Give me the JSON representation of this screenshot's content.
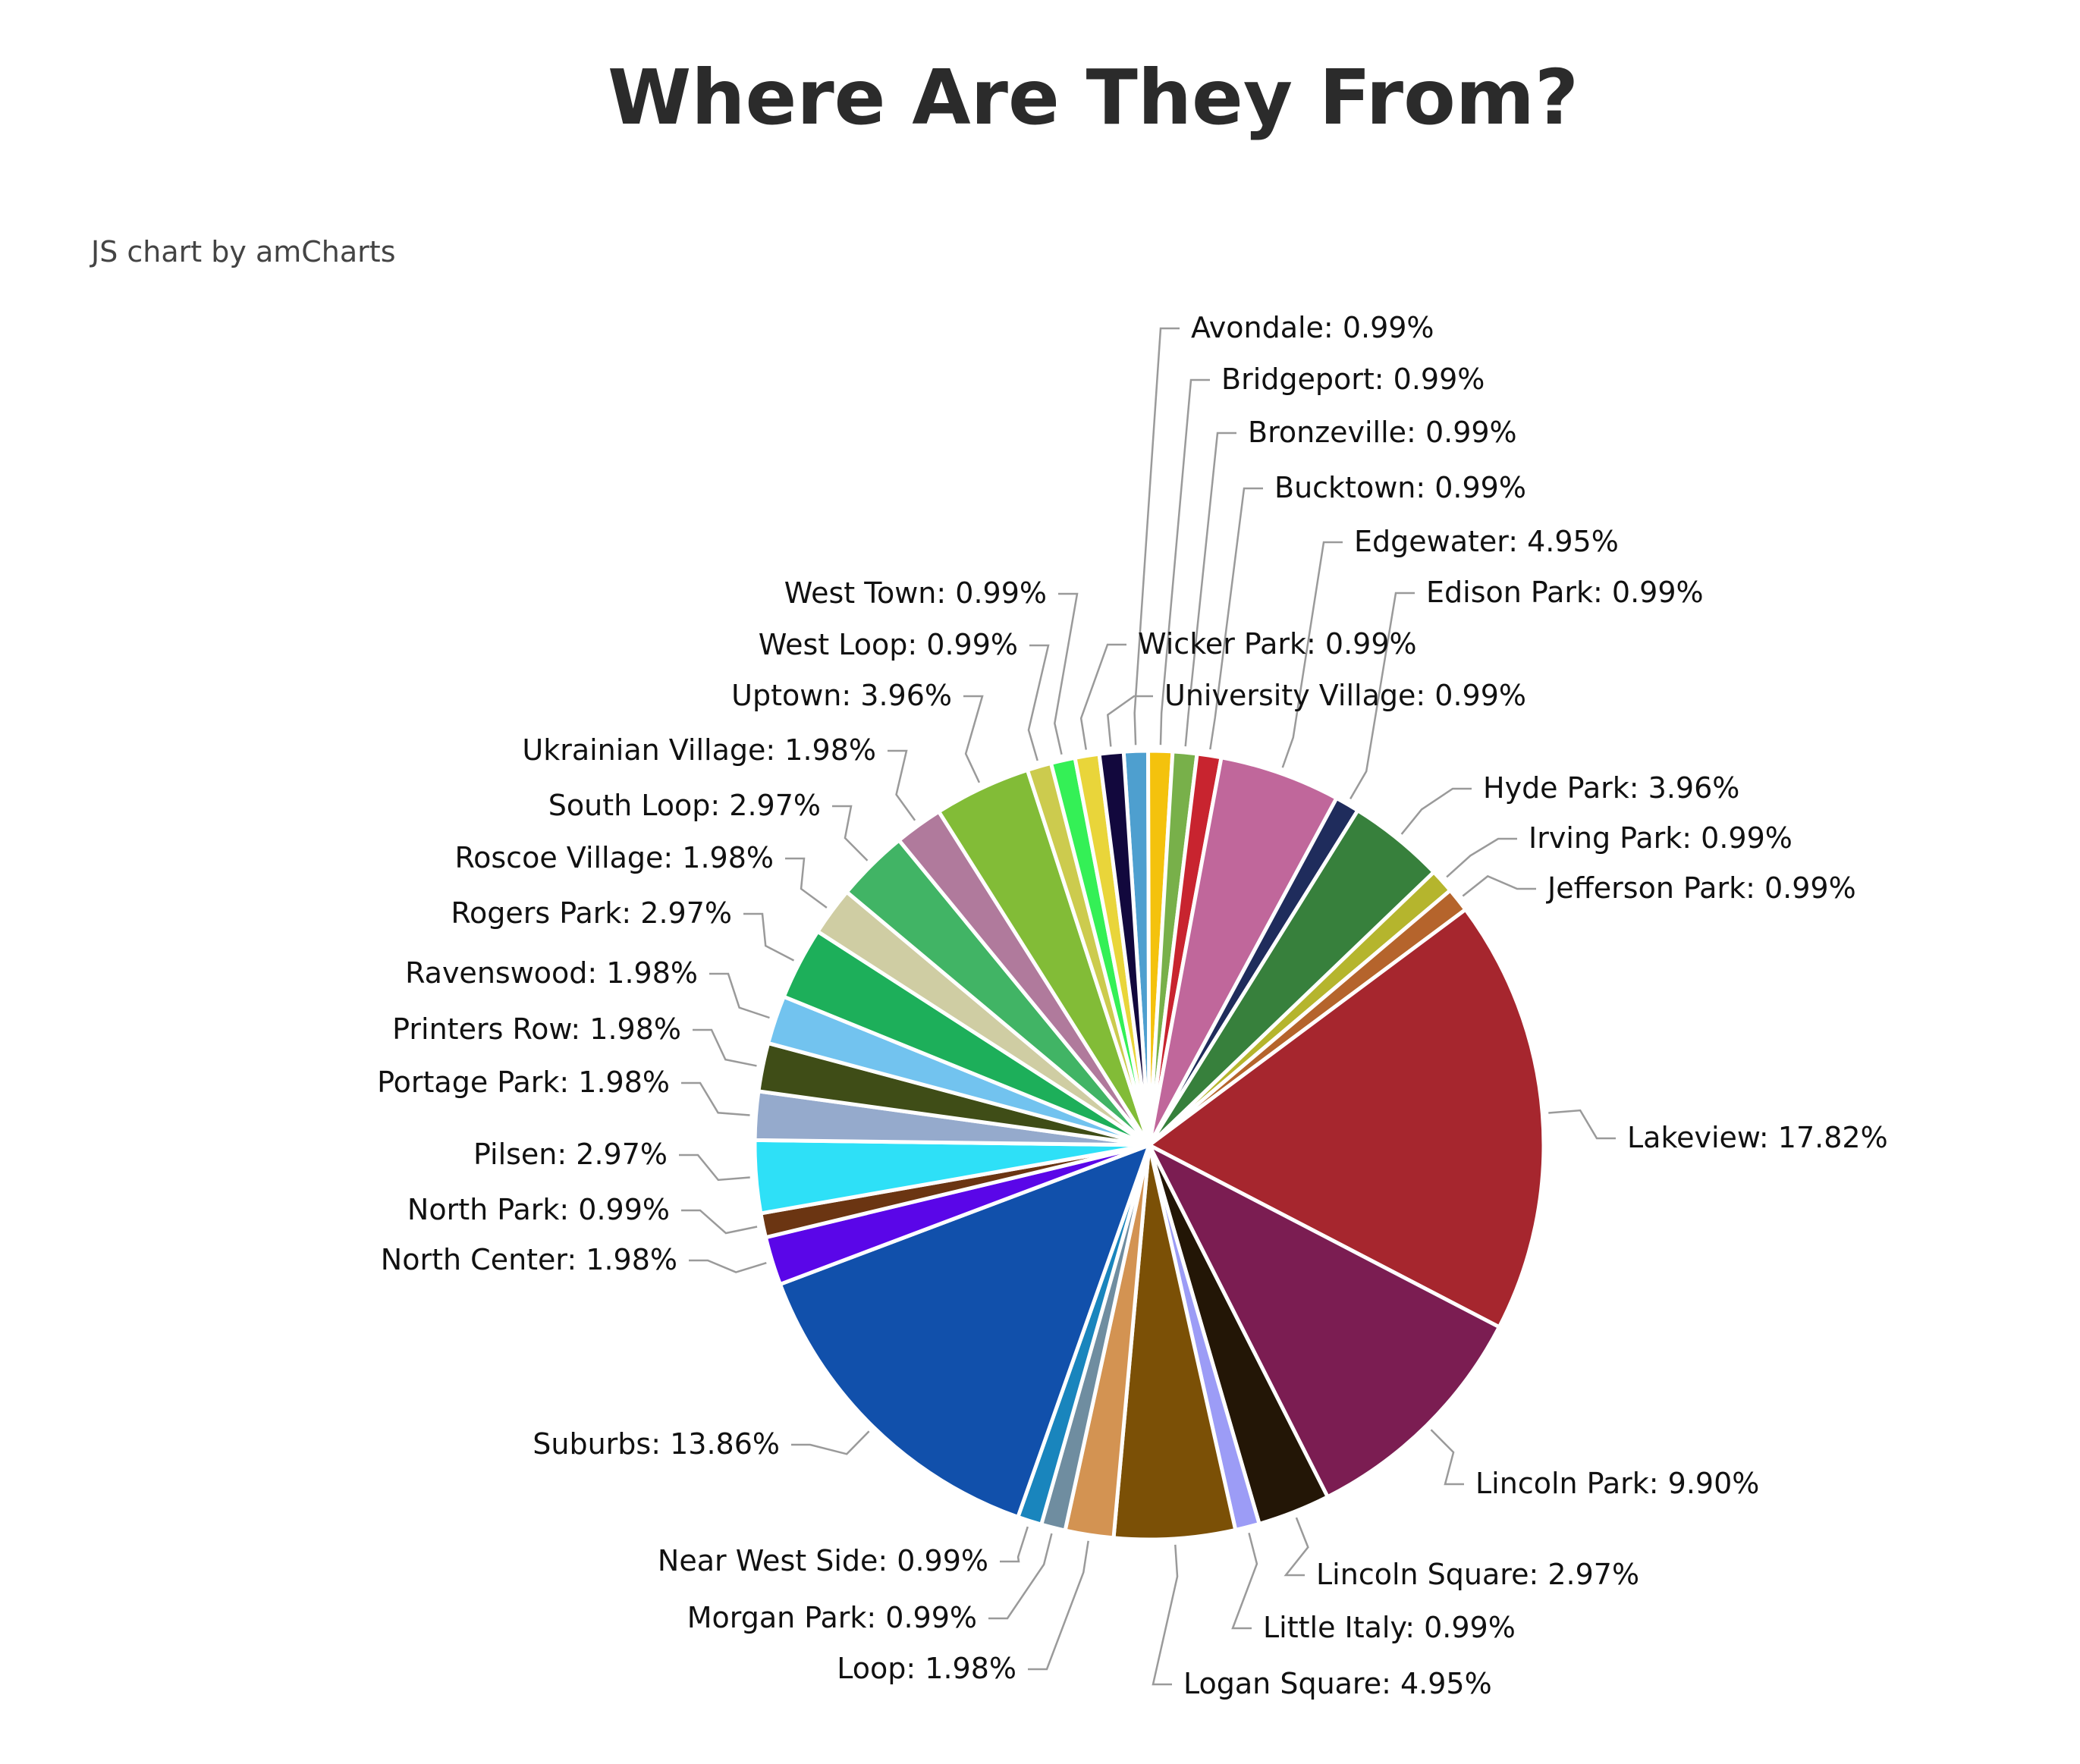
{
  "header": {
    "title": "Where Are They From?",
    "credit": "JS chart by amCharts"
  },
  "chart_data": {
    "type": "pie",
    "title": "Where Are They From?",
    "value_unit": "%",
    "slices": [
      {
        "label": "Avondale",
        "value": 0.99,
        "text": "0.99%",
        "color": "#4e9fcf"
      },
      {
        "label": "Bridgeport",
        "value": 0.99,
        "text": "0.99%",
        "color": "#f4c20d"
      },
      {
        "label": "Bronzeville",
        "value": 0.99,
        "text": "0.99%",
        "color": "#78b04a"
      },
      {
        "label": "Bucktown",
        "value": 0.99,
        "text": "0.99%",
        "color": "#c8242f"
      },
      {
        "label": "Edgewater",
        "value": 4.95,
        "text": "4.95%",
        "color": "#c0679b"
      },
      {
        "label": "Edison Park",
        "value": 0.99,
        "text": "0.99%",
        "color": "#1f2c5c"
      },
      {
        "label": "Hyde Park",
        "value": 3.96,
        "text": "3.96%",
        "color": "#37803c"
      },
      {
        "label": "Irving Park",
        "value": 0.99,
        "text": "0.99%",
        "color": "#b5b52d"
      },
      {
        "label": "Jefferson Park",
        "value": 0.99,
        "text": "0.99%",
        "color": "#b5642c"
      },
      {
        "label": "Lakeview",
        "value": 17.82,
        "text": "17.82%",
        "color": "#a6262e"
      },
      {
        "label": "Lincoln Park",
        "value": 9.9,
        "text": "9.90%",
        "color": "#7b1d52"
      },
      {
        "label": "Lincoln Square",
        "value": 2.97,
        "text": "2.97%",
        "color": "#231606"
      },
      {
        "label": "Little Italy",
        "value": 0.99,
        "text": "0.99%",
        "color": "#9c9cf6"
      },
      {
        "label": "Logan Square",
        "value": 4.95,
        "text": "4.95%",
        "color": "#7b5006"
      },
      {
        "label": "Loop",
        "value": 1.98,
        "text": "1.98%",
        "color": "#d39352"
      },
      {
        "label": "Morgan Park",
        "value": 0.99,
        "text": "0.99%",
        "color": "#6f8da0"
      },
      {
        "label": "Near West Side",
        "value": 0.99,
        "text": "0.99%",
        "color": "#1985bd"
      },
      {
        "label": "Suburbs",
        "value": 13.86,
        "text": "13.86%",
        "color": "#1150ab"
      },
      {
        "label": "North Center",
        "value": 1.98,
        "text": "1.98%",
        "color": "#5a06e8"
      },
      {
        "label": "North Park",
        "value": 0.99,
        "text": "0.99%",
        "color": "#6b3512"
      },
      {
        "label": "Pilsen",
        "value": 2.97,
        "text": "2.97%",
        "color": "#2ee0f7"
      },
      {
        "label": "Portage Park",
        "value": 1.98,
        "text": "1.98%",
        "color": "#95aacc"
      },
      {
        "label": "Printers Row",
        "value": 1.98,
        "text": "1.98%",
        "color": "#3f4d17"
      },
      {
        "label": "Ravenswood",
        "value": 1.98,
        "text": "1.98%",
        "color": "#72c3ef"
      },
      {
        "label": "Rogers Park",
        "value": 2.97,
        "text": "2.97%",
        "color": "#1daf5a"
      },
      {
        "label": "Roscoe Village",
        "value": 1.98,
        "text": "1.98%",
        "color": "#cfcda3"
      },
      {
        "label": "South Loop",
        "value": 2.97,
        "text": "2.97%",
        "color": "#41b465"
      },
      {
        "label": "Ukrainian Village",
        "value": 1.98,
        "text": "1.98%",
        "color": "#b07a9c"
      },
      {
        "label": "Uptown",
        "value": 3.96,
        "text": "3.96%",
        "color": "#82bc37"
      },
      {
        "label": "West Loop",
        "value": 0.99,
        "text": "0.99%",
        "color": "#cccb4e"
      },
      {
        "label": "West Town",
        "value": 0.99,
        "text": "0.99%",
        "color": "#34f056"
      },
      {
        "label": "Wicker Park",
        "value": 0.99,
        "text": "0.99%",
        "color": "#e9d53a"
      },
      {
        "label": "University Village",
        "value": 0.99,
        "text": "0.99%",
        "color": "#12083d"
      }
    ]
  }
}
